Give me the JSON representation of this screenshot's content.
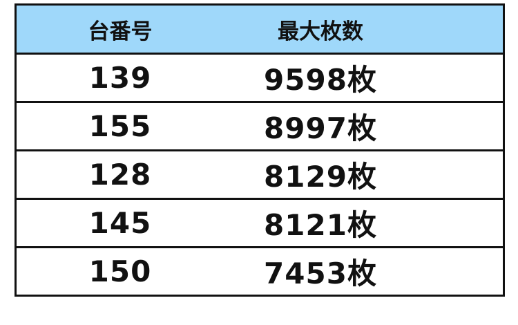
{
  "table": {
    "headers": [
      "台番号",
      "最大枚数"
    ],
    "rows": [
      {
        "machine": "139",
        "max": "9598枚"
      },
      {
        "machine": "155",
        "max": "8997枚"
      },
      {
        "machine": "128",
        "max": "8129枚"
      },
      {
        "machine": "145",
        "max": "8121枚"
      },
      {
        "machine": "150",
        "max": "7453枚"
      }
    ],
    "header_color": "#9fd8fa"
  }
}
